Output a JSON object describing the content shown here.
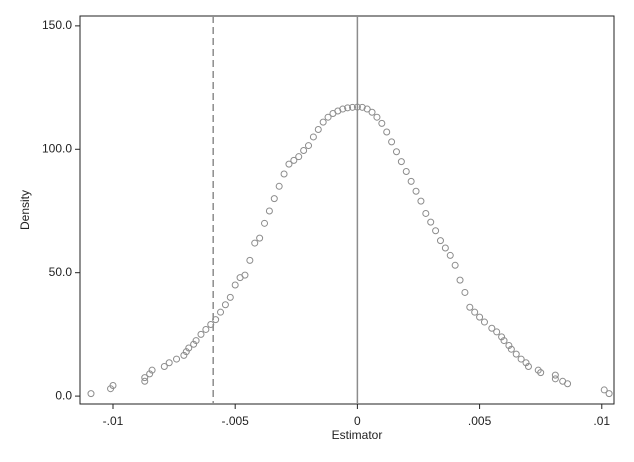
{
  "chart_data": {
    "type": "scatter",
    "xlabel": "Estimator",
    "ylabel": "Density",
    "xlim": [
      -0.01135,
      0.0105
    ],
    "ylim": [
      -3.2,
      154
    ],
    "xticks": [
      {
        "value": -0.01,
        "label": "-.01"
      },
      {
        "value": -0.005,
        "label": "-.005"
      },
      {
        "value": 0,
        "label": "0"
      },
      {
        "value": 0.005,
        "label": ".005"
      },
      {
        "value": 0.01,
        "label": ".01"
      }
    ],
    "yticks": [
      {
        "value": 0,
        "label": "0.0"
      },
      {
        "value": 50,
        "label": "50.0"
      },
      {
        "value": 100,
        "label": "100.0"
      },
      {
        "value": 150,
        "label": "150.0"
      }
    ],
    "xlines": [
      {
        "value": 0,
        "style": "solid"
      },
      {
        "value": -0.0059,
        "style": "dashed"
      }
    ],
    "color": "#8c8c8c",
    "x": [
      -0.0109,
      -0.0101,
      -0.01,
      -0.0087,
      -0.0087,
      -0.0085,
      -0.0084,
      -0.0079,
      -0.0077,
      -0.0074,
      -0.0071,
      -0.007,
      -0.0069,
      -0.0067,
      -0.0066,
      -0.0064,
      -0.0062,
      -0.006,
      -0.0058,
      -0.0056,
      -0.0054,
      -0.0052,
      -0.005,
      -0.0048,
      -0.0046,
      -0.0044,
      -0.0042,
      -0.004,
      -0.0038,
      -0.0036,
      -0.0034,
      -0.0032,
      -0.003,
      -0.0028,
      -0.0026,
      -0.0024,
      -0.0022,
      -0.002,
      -0.0018,
      -0.0016,
      -0.0014,
      -0.0012,
      -0.001,
      -0.0008,
      -0.0006,
      -0.0004,
      -0.0002,
      0,
      0.0002,
      0.0004,
      0.0006,
      0.0008,
      0.001,
      0.0012,
      0.0014,
      0.0016,
      0.0018,
      0.002,
      0.0022,
      0.0024,
      0.0026,
      0.0028,
      0.003,
      0.0032,
      0.0034,
      0.0036,
      0.0038,
      0.004,
      0.0042,
      0.0044,
      0.0046,
      0.0048,
      0.005,
      0.0052,
      0.0055,
      0.0057,
      0.0059,
      0.006,
      0.0062,
      0.0063,
      0.0065,
      0.0067,
      0.0069,
      0.007,
      0.0074,
      0.0075,
      0.0081,
      0.0081,
      0.0084,
      0.0086,
      0.0101,
      0.0103
    ],
    "values": [
      1,
      3,
      4.3,
      6,
      7.5,
      9,
      10.5,
      12,
      13.5,
      15,
      16.5,
      18,
      19.5,
      21,
      22.5,
      25,
      27,
      29,
      31,
      34,
      37,
      40,
      45,
      48,
      49,
      55,
      62,
      64,
      70,
      75,
      80,
      85,
      90,
      94,
      95.5,
      97,
      99.5,
      101.5,
      105,
      108,
      111,
      113,
      114.5,
      115.5,
      116.3,
      116.8,
      117,
      117.1,
      117,
      116.3,
      115,
      113,
      110.5,
      107,
      103,
      99,
      95,
      91,
      87,
      83,
      79,
      74,
      70.5,
      67,
      63,
      60,
      57,
      53,
      47,
      42,
      36,
      34,
      32,
      30,
      27.5,
      26,
      24,
      22.5,
      20.5,
      19,
      17,
      15,
      13.5,
      12,
      10.5,
      9.5,
      8.5,
      7,
      6,
      5,
      2.5,
      1
    ]
  }
}
